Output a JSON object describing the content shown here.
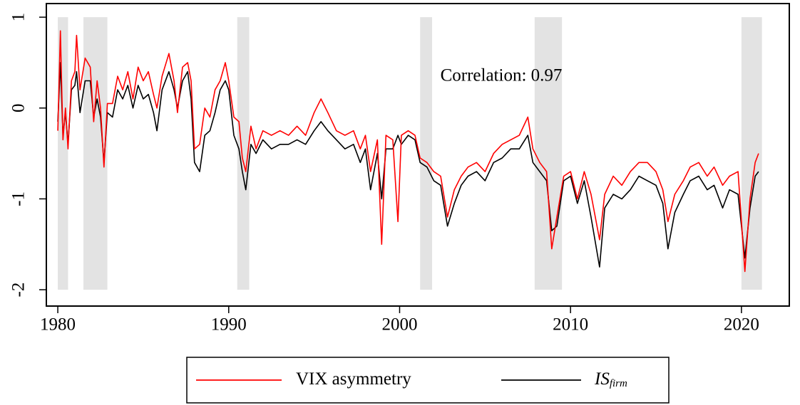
{
  "chart_data": {
    "type": "line",
    "annotation": "Correlation: 0.97",
    "x": [
      1980.0,
      1980.15,
      1980.3,
      1980.45,
      1980.6,
      1980.8,
      1981.0,
      1981.1,
      1981.3,
      1981.6,
      1981.9,
      1982.1,
      1982.3,
      1982.5,
      1982.7,
      1982.9,
      1983.2,
      1983.5,
      1983.8,
      1984.1,
      1984.4,
      1984.7,
      1985.0,
      1985.3,
      1985.6,
      1985.8,
      1986.1,
      1986.5,
      1986.8,
      1987.0,
      1987.3,
      1987.6,
      1987.8,
      1988.0,
      1988.3,
      1988.6,
      1988.9,
      1989.2,
      1989.5,
      1989.8,
      1990.0,
      1990.3,
      1990.6,
      1990.8,
      1991.0,
      1991.3,
      1991.6,
      1992.0,
      1992.5,
      1993.0,
      1993.5,
      1994.0,
      1994.5,
      1995.0,
      1995.4,
      1995.8,
      1996.3,
      1996.8,
      1997.3,
      1997.7,
      1998.0,
      1998.3,
      1998.7,
      1998.95,
      1999.2,
      1999.6,
      1999.9,
      2000.1,
      2000.5,
      2000.9,
      2001.2,
      2001.6,
      2002.0,
      2002.4,
      2002.8,
      2003.2,
      2003.6,
      2004.0,
      2004.5,
      2005.0,
      2005.5,
      2006.0,
      2006.5,
      2007.0,
      2007.5,
      2007.8,
      2008.2,
      2008.6,
      2008.9,
      2009.2,
      2009.6,
      2010.0,
      2010.4,
      2010.8,
      2011.2,
      2011.7,
      2012.0,
      2012.5,
      2013.0,
      2013.5,
      2014.0,
      2014.5,
      2015.0,
      2015.4,
      2015.7,
      2016.1,
      2016.6,
      2017.0,
      2017.5,
      2018.0,
      2018.4,
      2018.9,
      2019.3,
      2019.8,
      2020.2,
      2020.5,
      2020.8,
      2021.0
    ],
    "series": [
      {
        "name": "VIX asymmetry",
        "color": "#ff0000",
        "values": [
          -0.25,
          0.85,
          -0.35,
          0.0,
          -0.45,
          0.3,
          0.4,
          0.8,
          0.2,
          0.55,
          0.45,
          -0.15,
          0.3,
          0.0,
          -0.65,
          0.05,
          0.05,
          0.35,
          0.2,
          0.4,
          0.1,
          0.45,
          0.3,
          0.4,
          0.15,
          0.0,
          0.35,
          0.6,
          0.3,
          -0.05,
          0.45,
          0.5,
          0.3,
          -0.45,
          -0.4,
          0.0,
          -0.1,
          0.2,
          0.3,
          0.5,
          0.3,
          -0.1,
          -0.15,
          -0.55,
          -0.7,
          -0.2,
          -0.45,
          -0.25,
          -0.3,
          -0.25,
          -0.3,
          -0.2,
          -0.3,
          -0.05,
          0.1,
          -0.05,
          -0.25,
          -0.3,
          -0.25,
          -0.45,
          -0.3,
          -0.7,
          -0.35,
          -1.5,
          -0.3,
          -0.35,
          -1.25,
          -0.3,
          -0.25,
          -0.3,
          -0.55,
          -0.6,
          -0.7,
          -0.75,
          -1.2,
          -0.9,
          -0.75,
          -0.65,
          -0.6,
          -0.7,
          -0.5,
          -0.4,
          -0.35,
          -0.3,
          -0.1,
          -0.45,
          -0.6,
          -0.7,
          -1.55,
          -1.2,
          -0.75,
          -0.7,
          -1.0,
          -0.7,
          -0.95,
          -1.45,
          -0.95,
          -0.75,
          -0.85,
          -0.7,
          -0.6,
          -0.6,
          -0.7,
          -0.9,
          -1.25,
          -0.95,
          -0.8,
          -0.65,
          -0.6,
          -0.75,
          -0.65,
          -0.85,
          -0.75,
          -0.7,
          -1.8,
          -1.0,
          -0.6,
          -0.5
        ]
      },
      {
        "name": "IS",
        "name_subscript": "firm",
        "color": "#000000",
        "values": [
          -0.15,
          0.5,
          -0.3,
          -0.05,
          -0.4,
          0.2,
          0.25,
          0.4,
          -0.05,
          0.3,
          0.3,
          -0.1,
          0.1,
          -0.1,
          -0.6,
          -0.05,
          -0.1,
          0.2,
          0.1,
          0.25,
          0.0,
          0.25,
          0.1,
          0.15,
          -0.05,
          -0.25,
          0.2,
          0.4,
          0.2,
          0.0,
          0.3,
          0.4,
          0.1,
          -0.6,
          -0.7,
          -0.3,
          -0.25,
          -0.05,
          0.2,
          0.3,
          0.2,
          -0.3,
          -0.45,
          -0.7,
          -0.9,
          -0.4,
          -0.5,
          -0.35,
          -0.45,
          -0.4,
          -0.4,
          -0.35,
          -0.4,
          -0.25,
          -0.15,
          -0.25,
          -0.35,
          -0.45,
          -0.4,
          -0.6,
          -0.45,
          -0.9,
          -0.5,
          -1.0,
          -0.45,
          -0.45,
          -0.3,
          -0.4,
          -0.3,
          -0.35,
          -0.6,
          -0.65,
          -0.8,
          -0.85,
          -1.3,
          -1.05,
          -0.85,
          -0.75,
          -0.7,
          -0.8,
          -0.6,
          -0.55,
          -0.45,
          -0.45,
          -0.3,
          -0.6,
          -0.7,
          -0.8,
          -1.35,
          -1.3,
          -0.8,
          -0.75,
          -1.05,
          -0.8,
          -1.2,
          -1.75,
          -1.1,
          -0.95,
          -1.0,
          -0.9,
          -0.75,
          -0.8,
          -0.85,
          -1.05,
          -1.55,
          -1.15,
          -0.95,
          -0.8,
          -0.75,
          -0.9,
          -0.85,
          -1.1,
          -0.9,
          -0.95,
          -1.65,
          -1.1,
          -0.75,
          -0.7
        ]
      }
    ],
    "shaded_periods": [
      [
        1980.0,
        1980.6
      ],
      [
        1981.5,
        1982.9
      ],
      [
        1990.5,
        1991.2
      ],
      [
        2001.2,
        2001.9
      ],
      [
        2007.9,
        2009.5
      ],
      [
        2020.0,
        2021.2
      ]
    ],
    "shade_color": "#e3e3e3",
    "xlim": [
      1979.33,
      2022.8
    ],
    "ylim": [
      -2.18,
      1.15
    ],
    "xticks": [
      1980,
      1990,
      2000,
      2010,
      2020
    ],
    "yticks": [
      -2,
      -1,
      0,
      1
    ],
    "legend": "bottom"
  }
}
